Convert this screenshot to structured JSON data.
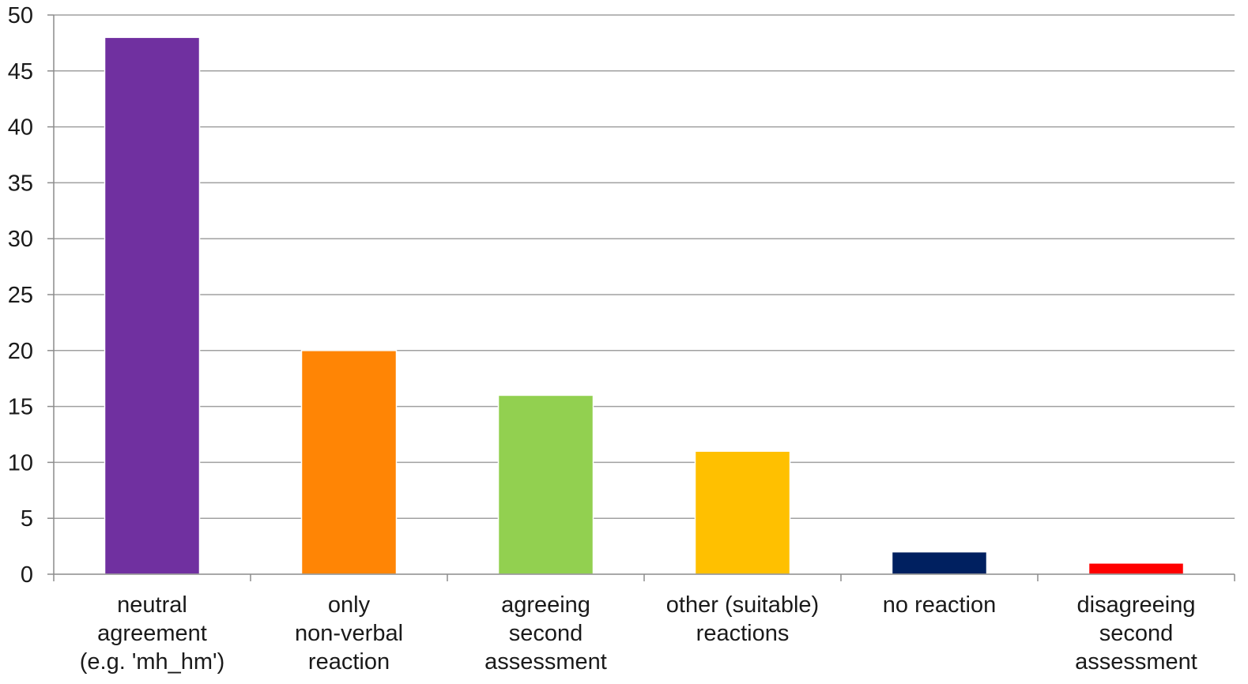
{
  "chart_data": {
    "type": "bar",
    "title": "",
    "xlabel": "",
    "ylabel": "",
    "ylim": [
      0,
      50
    ],
    "yticks": [
      0,
      5,
      10,
      15,
      20,
      25,
      30,
      35,
      40,
      45,
      50
    ],
    "grid": true,
    "legend": "none",
    "categories": [
      [
        "neutral",
        "agreement",
        "(e.g. 'mh_hm')"
      ],
      [
        "only",
        "non-verbal",
        "reaction"
      ],
      [
        "agreeing",
        "second",
        "assessment"
      ],
      [
        "other (suitable)",
        "reactions"
      ],
      [
        "no reaction"
      ],
      [
        "disagreeing",
        "second",
        "assessment"
      ]
    ],
    "values": [
      48,
      20,
      16,
      11,
      2,
      1
    ],
    "colors": [
      "#7030a0",
      "#ff8505",
      "#92d050",
      "#ffc000",
      "#002060",
      "#ff0000"
    ]
  }
}
